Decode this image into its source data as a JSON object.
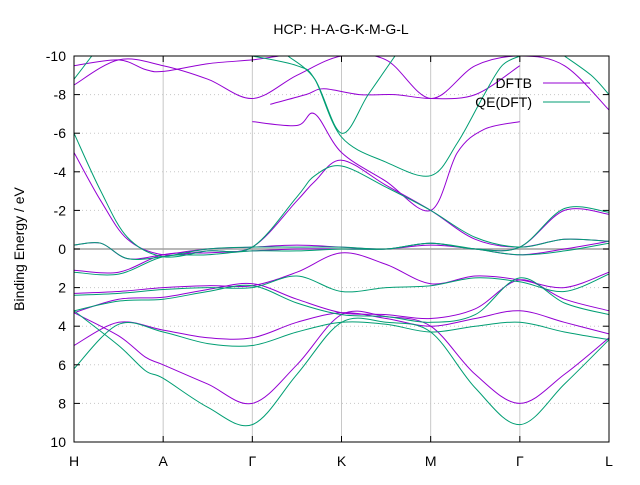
{
  "chart_data": {
    "type": "line",
    "title": "HCP: H-A-G-K-M-G-L",
    "ylabel": "Binding Energy / eV",
    "xlabel": "",
    "ylim": [
      10,
      -10
    ],
    "y_reversed": true,
    "yticks": [
      {
        "value": -10,
        "label": "-10"
      },
      {
        "value": -8,
        "label": "-8"
      },
      {
        "value": -6,
        "label": "-6"
      },
      {
        "value": -4,
        "label": "-4"
      },
      {
        "value": -2,
        "label": "-2"
      },
      {
        "value": 0,
        "label": "0"
      },
      {
        "value": 2,
        "label": "2"
      },
      {
        "value": 4,
        "label": "4"
      },
      {
        "value": 6,
        "label": "6"
      },
      {
        "value": 8,
        "label": "8"
      },
      {
        "value": 10,
        "label": "10"
      }
    ],
    "kpoints": [
      {
        "position": 0,
        "label": "H"
      },
      {
        "position": 1,
        "label": "A"
      },
      {
        "position": 2,
        "label": "Γ"
      },
      {
        "position": 3,
        "label": "K"
      },
      {
        "position": 4,
        "label": "M"
      },
      {
        "position": 5,
        "label": "Γ"
      },
      {
        "position": 6,
        "label": "L"
      }
    ],
    "xlim": [
      0,
      6
    ],
    "grid": true,
    "legend_position": "top-right",
    "fermi_level": 0,
    "series": [
      {
        "name": "DFTB",
        "color": "#9400d3",
        "bands": [
          [
            [
              0,
              5.0
            ],
            [
              0.5,
              3.8
            ],
            [
              1,
              4.2
            ],
            [
              1.5,
              4.6
            ],
            [
              2,
              4.6
            ],
            [
              2.5,
              3.8
            ],
            [
              3,
              3.3
            ],
            [
              3.5,
              3.6
            ],
            [
              4,
              4.0
            ],
            [
              4.5,
              3.6
            ],
            [
              5,
              3.2
            ],
            [
              5.5,
              3.8
            ],
            [
              6,
              4.4
            ]
          ],
          [
            [
              0,
              3.3
            ],
            [
              0.5,
              4.5
            ],
            [
              0.8,
              5.6
            ],
            [
              1,
              6.0
            ],
            [
              1.5,
              7.0
            ],
            [
              2,
              8.0
            ],
            [
              2.5,
              6.0
            ],
            [
              3,
              3.4
            ],
            [
              3.5,
              3.5
            ],
            [
              4,
              4.0
            ],
            [
              4.5,
              6.5
            ],
            [
              5,
              8.0
            ],
            [
              5.5,
              6.5
            ],
            [
              6,
              4.6
            ]
          ],
          [
            [
              0,
              3.3
            ],
            [
              0.5,
              2.6
            ],
            [
              1,
              2.5
            ],
            [
              1.5,
              2.1
            ],
            [
              2,
              1.8
            ],
            [
              2.5,
              2.6
            ],
            [
              3,
              3.3
            ],
            [
              3.5,
              3.4
            ],
            [
              4,
              3.6
            ],
            [
              4.5,
              3.1
            ],
            [
              5,
              1.6
            ],
            [
              5.5,
              2.6
            ],
            [
              6,
              3.2
            ]
          ],
          [
            [
              0,
              2.3
            ],
            [
              0.5,
              2.2
            ],
            [
              1,
              2.0
            ],
            [
              1.5,
              1.9
            ],
            [
              2,
              1.9
            ],
            [
              2.5,
              1.2
            ],
            [
              3,
              0.2
            ],
            [
              3.5,
              0.8
            ],
            [
              4,
              1.8
            ],
            [
              4.5,
              1.4
            ],
            [
              5,
              1.6
            ],
            [
              5.5,
              2.0
            ],
            [
              6,
              1.2
            ]
          ],
          [
            [
              0,
              1.1
            ],
            [
              0.5,
              1.2
            ],
            [
              1,
              0.3
            ],
            [
              1.5,
              0.2
            ],
            [
              2,
              0.1
            ],
            [
              2.5,
              0.0
            ],
            [
              3,
              0.0
            ],
            [
              3.5,
              0.0
            ],
            [
              4,
              -0.2
            ],
            [
              4.5,
              0.0
            ],
            [
              5,
              0.3
            ],
            [
              5.5,
              0.0
            ],
            [
              6,
              -0.4
            ]
          ],
          [
            [
              0,
              -0.2
            ],
            [
              0.3,
              -0.3
            ],
            [
              0.6,
              0.5
            ],
            [
              1,
              0.3
            ],
            [
              1.5,
              0.0
            ],
            [
              2,
              -0.1
            ],
            [
              2.5,
              -0.2
            ],
            [
              3,
              -0.1
            ],
            [
              3.5,
              0.0
            ],
            [
              4,
              -0.3
            ],
            [
              4.5,
              0.0
            ],
            [
              5,
              -0.1
            ],
            [
              5.5,
              -2.0
            ],
            [
              6,
              -1.8
            ]
          ],
          [
            [
              0,
              -5.0
            ],
            [
              0.3,
              -2.5
            ],
            [
              0.6,
              -0.5
            ],
            [
              1,
              0.3
            ],
            [
              1.5,
              0.1
            ],
            [
              2,
              -0.1
            ],
            [
              2.5,
              -2.5
            ],
            [
              2.7,
              -3.5
            ],
            [
              3,
              -4.6
            ],
            [
              3.5,
              -3.3
            ],
            [
              4,
              -2.0
            ],
            [
              4.5,
              -0.5
            ],
            [
              5,
              -0.1
            ],
            [
              5.5,
              -0.5
            ],
            [
              6,
              -0.4
            ]
          ],
          [
            [
              0,
              -8.5
            ],
            [
              0.5,
              -9.8
            ],
            [
              1,
              -9.5
            ],
            [
              1.5,
              -8.8
            ],
            [
              2,
              -7.8
            ],
            [
              2.5,
              -9.0
            ],
            [
              3,
              -10.0
            ],
            [
              3.5,
              -9.8
            ],
            [
              4,
              -7.8
            ],
            [
              4.5,
              -9.5
            ],
            [
              5,
              -10.0
            ],
            [
              5.5,
              -9.5
            ],
            [
              6,
              -7.2
            ]
          ],
          [
            [
              0,
              -9.5
            ],
            [
              0.5,
              -9.8
            ],
            [
              0.8,
              -9.3
            ],
            [
              1,
              -9.2
            ],
            [
              1.5,
              -9.6
            ],
            [
              2,
              -9.8
            ],
            [
              2.3,
              -10.0
            ]
          ],
          [
            [
              2.0,
              -6.6
            ],
            [
              2.5,
              -6.4
            ],
            [
              2.7,
              -7.0
            ],
            [
              3,
              -5.0
            ],
            [
              3.5,
              -3.5
            ],
            [
              4,
              -2.0
            ],
            [
              4.3,
              -5.0
            ],
            [
              4.6,
              -6.2
            ],
            [
              5,
              -6.6
            ]
          ],
          [
            [
              2.2,
              -7.5
            ],
            [
              2.6,
              -8.0
            ],
            [
              2.8,
              -8.3
            ],
            [
              3.2,
              -8.0
            ],
            [
              3.6,
              -8.0
            ],
            [
              4,
              -7.8
            ],
            [
              4.5,
              -8.0
            ],
            [
              5,
              -9.5
            ]
          ]
        ]
      },
      {
        "name": "QE(DFT)",
        "color": "#009e73",
        "bands": [
          [
            [
              0,
              6.2
            ],
            [
              0.5,
              3.9
            ],
            [
              1,
              4.3
            ],
            [
              1.5,
              4.9
            ],
            [
              2,
              5.0
            ],
            [
              2.5,
              4.3
            ],
            [
              3,
              3.8
            ],
            [
              3.5,
              3.9
            ],
            [
              4,
              4.3
            ],
            [
              4.5,
              4.0
            ],
            [
              5,
              3.8
            ],
            [
              5.5,
              4.3
            ],
            [
              6,
              4.7
            ]
          ],
          [
            [
              0,
              3.2
            ],
            [
              0.5,
              5.0
            ],
            [
              0.8,
              6.3
            ],
            [
              1,
              6.7
            ],
            [
              1.5,
              8.2
            ],
            [
              2,
              9.1
            ],
            [
              2.5,
              6.5
            ],
            [
              3,
              3.8
            ],
            [
              3.5,
              3.8
            ],
            [
              4,
              4.3
            ],
            [
              4.5,
              7.2
            ],
            [
              5,
              9.1
            ],
            [
              5.5,
              7.0
            ],
            [
              6,
              4.7
            ]
          ],
          [
            [
              0,
              3.2
            ],
            [
              0.5,
              2.7
            ],
            [
              1,
              2.6
            ],
            [
              1.5,
              2.2
            ],
            [
              2,
              1.9
            ],
            [
              2.5,
              2.8
            ],
            [
              3,
              3.4
            ],
            [
              3.5,
              3.5
            ],
            [
              4,
              3.8
            ],
            [
              4.5,
              3.4
            ],
            [
              5,
              1.5
            ],
            [
              5.5,
              2.8
            ],
            [
              6,
              3.4
            ]
          ],
          [
            [
              0,
              2.4
            ],
            [
              0.5,
              2.3
            ],
            [
              1,
              2.1
            ],
            [
              1.5,
              2.0
            ],
            [
              2,
              2.0
            ],
            [
              2.5,
              1.4
            ],
            [
              3,
              2.2
            ],
            [
              3.5,
              2.0
            ],
            [
              4,
              1.9
            ],
            [
              4.5,
              1.5
            ],
            [
              5,
              1.7
            ],
            [
              5.5,
              2.2
            ],
            [
              6,
              1.3
            ]
          ],
          [
            [
              0,
              1.2
            ],
            [
              0.5,
              1.3
            ],
            [
              1,
              0.4
            ],
            [
              1.5,
              0.3
            ],
            [
              2,
              0.1
            ],
            [
              2.5,
              0.1
            ],
            [
              3,
              0.0
            ],
            [
              3.5,
              0.0
            ],
            [
              4,
              -0.3
            ],
            [
              4.5,
              0.0
            ],
            [
              5,
              0.3
            ],
            [
              5.5,
              0.1
            ],
            [
              6,
              -0.3
            ]
          ],
          [
            [
              0,
              -0.2
            ],
            [
              0.3,
              -0.3
            ],
            [
              0.6,
              0.5
            ],
            [
              1,
              0.4
            ],
            [
              1.5,
              0.0
            ],
            [
              2,
              -0.1
            ],
            [
              2.5,
              -0.1
            ],
            [
              3,
              -0.1
            ],
            [
              3.5,
              0.0
            ],
            [
              4,
              -0.3
            ],
            [
              4.5,
              0.0
            ],
            [
              5,
              -0.1
            ],
            [
              5.5,
              -2.1
            ],
            [
              6,
              -1.9
            ]
          ],
          [
            [
              0,
              -6.0
            ],
            [
              0.3,
              -3.0
            ],
            [
              0.6,
              -0.6
            ],
            [
              1,
              0.4
            ],
            [
              1.5,
              0.1
            ],
            [
              2,
              -0.1
            ],
            [
              2.5,
              -2.7
            ],
            [
              2.7,
              -3.8
            ],
            [
              3,
              -4.3
            ],
            [
              3.5,
              -3.2
            ],
            [
              4,
              -2.0
            ],
            [
              4.5,
              -0.6
            ],
            [
              5,
              -0.1
            ],
            [
              5.5,
              -0.5
            ],
            [
              6,
              -0.4
            ]
          ],
          [
            [
              0,
              -8.8
            ],
            [
              0.2,
              -10.0
            ]
          ],
          [
            [
              2.0,
              -10.0
            ],
            [
              2.5,
              -9.5
            ],
            [
              2.7,
              -8.8
            ],
            [
              3,
              -5.8
            ],
            [
              3.5,
              -4.5
            ],
            [
              4,
              -3.8
            ],
            [
              4.3,
              -5.5
            ],
            [
              4.6,
              -8.0
            ],
            [
              4.8,
              -9.5
            ],
            [
              5,
              -10.0
            ]
          ],
          [
            [
              2.4,
              -10.0
            ],
            [
              2.7,
              -8.8
            ],
            [
              3,
              -6.0
            ],
            [
              3.3,
              -8.0
            ],
            [
              3.6,
              -10.0
            ]
          ],
          [
            [
              5.5,
              -10.0
            ],
            [
              5.8,
              -9.0
            ],
            [
              6,
              -8.0
            ]
          ]
        ]
      }
    ]
  }
}
